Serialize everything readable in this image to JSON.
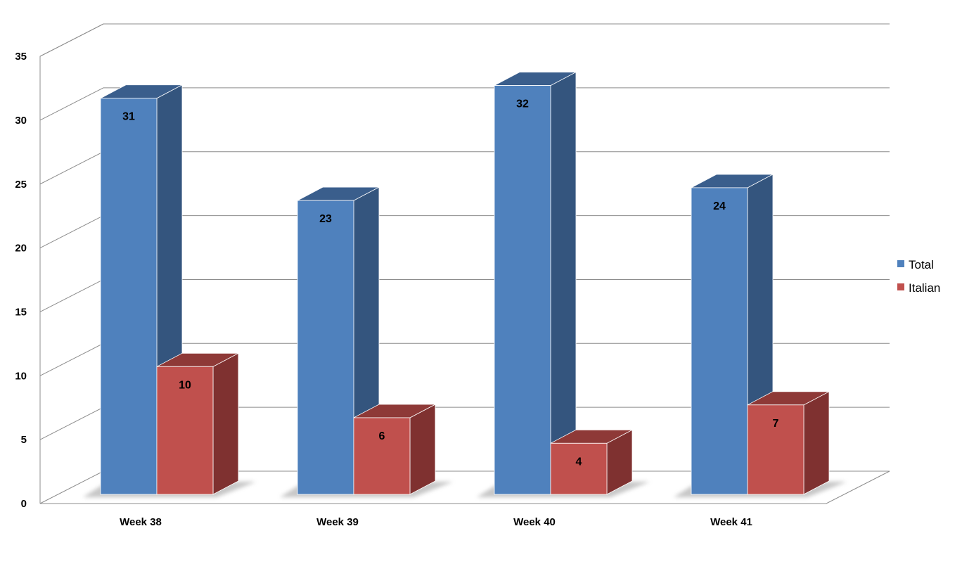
{
  "chart_data": {
    "type": "bar",
    "categories": [
      "Week 38",
      "Week 39",
      "Week 40",
      "Week 41"
    ],
    "series": [
      {
        "name": "Total",
        "values": [
          31,
          23,
          32,
          24
        ],
        "color": "#4F81BD",
        "side_color": "#34557E",
        "top_color": "#3A5E8C"
      },
      {
        "name": "Italian",
        "values": [
          10,
          6,
          4,
          7
        ],
        "color": "#C0504D",
        "side_color": "#7F3130",
        "top_color": "#8E3937"
      }
    ],
    "title": "",
    "xlabel": "",
    "ylabel": "",
    "ylim": [
      0,
      35
    ],
    "yticks": [
      0,
      5,
      10,
      15,
      20,
      25,
      30,
      35
    ],
    "grid": true,
    "legend_position": "right",
    "style": "3d-clustered-column",
    "data_labels": true
  }
}
